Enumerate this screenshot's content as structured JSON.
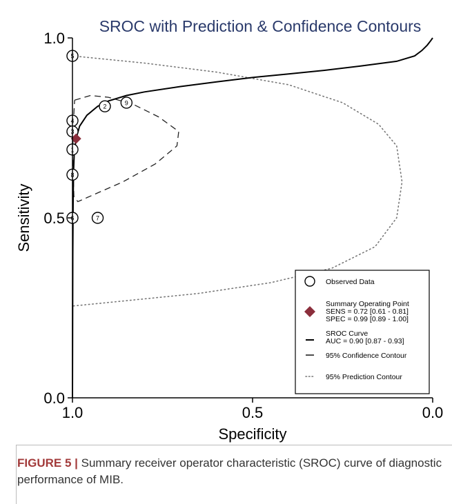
{
  "chart_data": {
    "type": "scatter",
    "title": "SROC with Prediction & Confidence Contours",
    "xlabel": "Specificity",
    "ylabel": "Sensitivity",
    "xlim": [
      1.0,
      0.0
    ],
    "ylim": [
      0.0,
      1.0
    ],
    "x_ticks": [
      "1.0",
      "0.5",
      "0.0"
    ],
    "y_ticks": [
      "0.0",
      "0.5",
      "1.0"
    ],
    "grid": false,
    "legend_position": "lower-right",
    "studies": [
      {
        "label": "5",
        "spec": 1.0,
        "sens": 0.95
      },
      {
        "label": "2",
        "spec": 0.91,
        "sens": 0.81
      },
      {
        "label": "9",
        "spec": 0.85,
        "sens": 0.82
      },
      {
        "label": "4",
        "spec": 1.0,
        "sens": 0.77
      },
      {
        "label": "3",
        "spec": 1.0,
        "sens": 0.74
      },
      {
        "label": "1",
        "spec": 1.0,
        "sens": 0.69
      },
      {
        "label": "8",
        "spec": 1.0,
        "sens": 0.62
      },
      {
        "label": "6",
        "spec": 1.0,
        "sens": 0.5
      },
      {
        "label": "7",
        "spec": 0.93,
        "sens": 0.5
      }
    ],
    "summary_point": {
      "spec": 0.99,
      "sens": 0.72,
      "color": "#8b2e3c"
    },
    "sroc_curve": [
      [
        1.0,
        0.0
      ],
      [
        0.999,
        0.4
      ],
      [
        0.998,
        0.55
      ],
      [
        0.997,
        0.63
      ],
      [
        0.995,
        0.68
      ],
      [
        0.99,
        0.72
      ],
      [
        0.98,
        0.755
      ],
      [
        0.96,
        0.785
      ],
      [
        0.93,
        0.81
      ],
      [
        0.9,
        0.825
      ],
      [
        0.85,
        0.84
      ],
      [
        0.8,
        0.85
      ],
      [
        0.7,
        0.865
      ],
      [
        0.6,
        0.878
      ],
      [
        0.5,
        0.89
      ],
      [
        0.4,
        0.9
      ],
      [
        0.3,
        0.91
      ],
      [
        0.2,
        0.922
      ],
      [
        0.1,
        0.935
      ],
      [
        0.05,
        0.95
      ],
      [
        0.03,
        0.965
      ],
      [
        0.015,
        0.98
      ],
      [
        0.005,
        0.993
      ],
      [
        0.0,
        1.0
      ]
    ],
    "confidence_contour": [
      [
        0.994,
        0.827
      ],
      [
        0.95,
        0.84
      ],
      [
        0.9,
        0.835
      ],
      [
        0.83,
        0.815
      ],
      [
        0.76,
        0.78
      ],
      [
        0.705,
        0.74
      ],
      [
        0.71,
        0.7
      ],
      [
        0.77,
        0.65
      ],
      [
        0.86,
        0.6
      ],
      [
        0.94,
        0.565
      ],
      [
        0.985,
        0.545
      ],
      [
        0.996,
        0.56
      ],
      [
        0.999,
        0.65
      ],
      [
        0.998,
        0.75
      ],
      [
        0.994,
        0.827
      ]
    ],
    "prediction_contour": [
      [
        1.0,
        0.95
      ],
      [
        0.8,
        0.93
      ],
      [
        0.6,
        0.905
      ],
      [
        0.4,
        0.87
      ],
      [
        0.25,
        0.82
      ],
      [
        0.15,
        0.76
      ],
      [
        0.1,
        0.7
      ],
      [
        0.085,
        0.6
      ],
      [
        0.1,
        0.5
      ],
      [
        0.16,
        0.42
      ],
      [
        0.28,
        0.36
      ],
      [
        0.45,
        0.32
      ],
      [
        0.65,
        0.29
      ],
      [
        0.85,
        0.27
      ],
      [
        1.0,
        0.255
      ]
    ],
    "legend": [
      {
        "key": "observed",
        "label": "Observed Data"
      },
      {
        "key": "summary",
        "label": "Summary Operating Point",
        "lines": [
          "SENS = 0.72 [0.61 - 0.81]",
          "SPEC = 0.99 [0.89 - 1.00]"
        ]
      },
      {
        "key": "sroc",
        "label": "SROC Curve",
        "lines": [
          "AUC = 0.90 [0.87 - 0.93]"
        ]
      },
      {
        "key": "confidence",
        "label": "95% Confidence Contour"
      },
      {
        "key": "prediction",
        "label": "95% Prediction Contour"
      }
    ],
    "colors": {
      "title": "#2a3a6b",
      "axis": "#000000",
      "summary": "#8b2e3c"
    }
  },
  "caption": {
    "label": "FIGURE 5 |",
    "text": " Summary receiver operator characteristic (SROC) curve of diagnostic performance of MIB."
  }
}
